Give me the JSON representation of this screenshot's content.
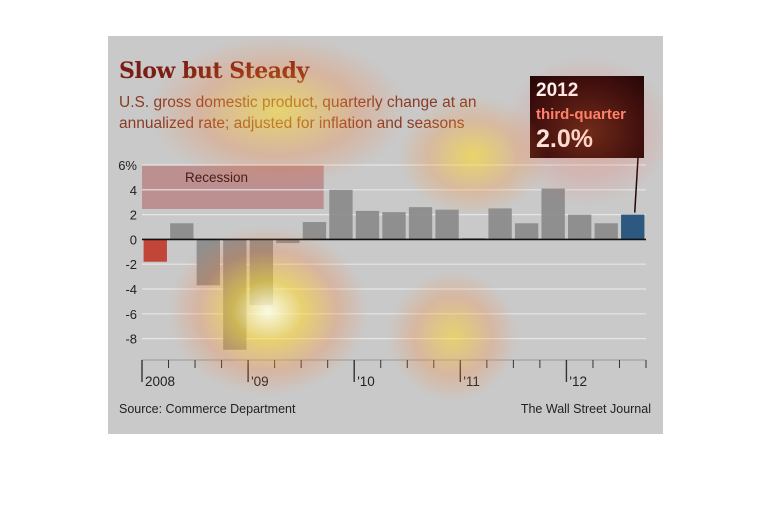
{
  "heading": {
    "title": "Slow but Steady",
    "subtitle": "U.S. gross domestic product, quarterly change at an annualized rate; adjusted for inflation and seasons"
  },
  "callout": {
    "year": "2012",
    "label": "third-quarter",
    "value": "2.0%"
  },
  "footer": {
    "source": "Source: Commerce Department",
    "credit": "The Wall Street Journal"
  },
  "colors": {
    "bar_default": "#8a8a8a",
    "bar_negative_first": "#c0392b",
    "bar_highlight": "#1f4e79",
    "recession_band": "#b06060",
    "heatmap_overlay": "#ffd21f"
  },
  "chart_data": {
    "type": "bar",
    "ylim": [
      -10,
      6
    ],
    "y_ticks": [
      6,
      4,
      2,
      0,
      -2,
      -4,
      -6,
      -8
    ],
    "y_tick_labels": [
      "6%",
      "4",
      "2",
      "0",
      "-2",
      "-4",
      "-6",
      "-8"
    ],
    "x_tick_labels": [
      "2008",
      "'09",
      "'10",
      "'11",
      "'12"
    ],
    "x_tick_quarter_index": [
      0,
      4,
      8,
      12,
      16
    ],
    "recession": {
      "label": "Recession",
      "start_quarter_index": 0,
      "end_quarter_index": 6
    },
    "quarters": [
      "2008 Q1",
      "2008 Q2",
      "2008 Q3",
      "2008 Q4",
      "2009 Q1",
      "2009 Q2",
      "2009 Q3",
      "2009 Q4",
      "2010 Q1",
      "2010 Q2",
      "2010 Q3",
      "2010 Q4",
      "2011 Q1",
      "2011 Q2",
      "2011 Q3",
      "2011 Q4",
      "2012 Q1",
      "2012 Q2",
      "2012 Q3"
    ],
    "values": [
      -1.8,
      1.3,
      -3.7,
      -8.9,
      -5.3,
      -0.3,
      1.4,
      4.0,
      2.3,
      2.2,
      2.6,
      2.4,
      0.1,
      2.5,
      1.3,
      4.1,
      2.0,
      1.3,
      2.0
    ],
    "highlight_index": 18
  }
}
